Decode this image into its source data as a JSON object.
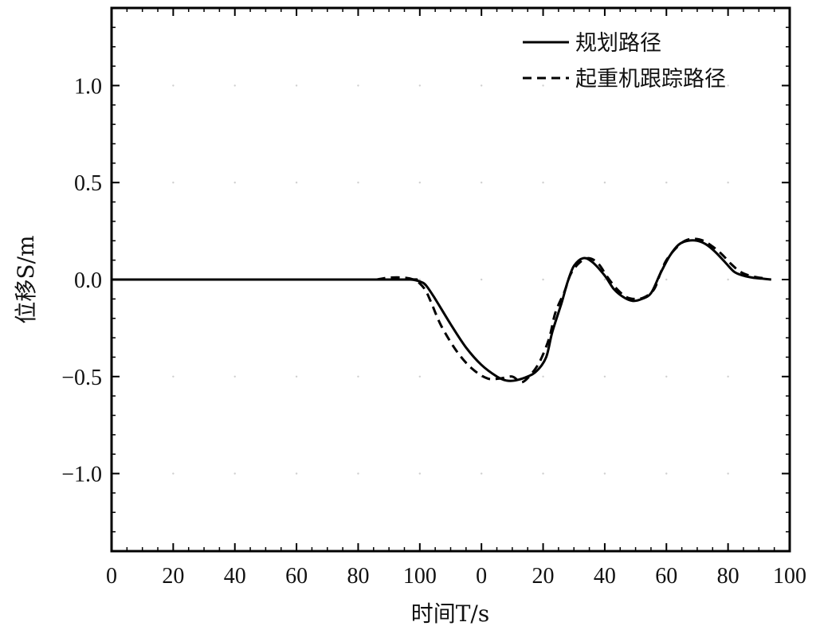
{
  "chart_data": {
    "type": "line",
    "title": "",
    "xlabel": "时间T/s",
    "ylabel": "位移S/m",
    "x_tick_labels": [
      "0",
      "20",
      "40",
      "60",
      "80",
      "100",
      "0",
      "20",
      "40",
      "60",
      "80",
      "100"
    ],
    "y_tick_labels": [
      "1.0",
      "0.5",
      "0.0",
      "−0.5",
      "−1.0"
    ],
    "y_tick_values": [
      1.0,
      0.5,
      0.0,
      -0.5,
      -1.0
    ],
    "ylim": [
      -1.4,
      1.4
    ],
    "xlim": [
      0,
      220
    ],
    "grid": "dotted-faint",
    "legend_position": "top-right",
    "series": [
      {
        "name": "规划路径",
        "style": "solid",
        "color": "#000000",
        "x": [
          0,
          90,
          97,
          100,
          102,
          105,
          110,
          115,
          120,
          125,
          128,
          131,
          135,
          138,
          141,
          143,
          146,
          148,
          150,
          153,
          156,
          160,
          163,
          166,
          169,
          172,
          175,
          178,
          181,
          184,
          187,
          190,
          193,
          196,
          199,
          202,
          205,
          208,
          211,
          214
        ],
        "y": [
          0,
          0,
          0,
          -0.01,
          -0.03,
          -0.1,
          -0.23,
          -0.35,
          -0.44,
          -0.5,
          -0.52,
          -0.52,
          -0.5,
          -0.47,
          -0.4,
          -0.27,
          -0.12,
          -0.01,
          0.07,
          0.11,
          0.09,
          0.02,
          -0.05,
          -0.09,
          -0.11,
          -0.1,
          -0.07,
          0.03,
          0.12,
          0.18,
          0.2,
          0.2,
          0.18,
          0.14,
          0.09,
          0.04,
          0.02,
          0.01,
          0.005,
          0
        ]
      },
      {
        "name": "起重机跟踪路径",
        "style": "dashed",
        "color": "#000000",
        "x": [
          86,
          90,
          95,
          98,
          100,
          102,
          104,
          107,
          112,
          117,
          122,
          126,
          130,
          133,
          136,
          139,
          142,
          144,
          147,
          149,
          152,
          155,
          158,
          161,
          164,
          167,
          170,
          173,
          176,
          178,
          180,
          183,
          186,
          189,
          192,
          195,
          198,
          201,
          204,
          207,
          210,
          213
        ],
        "y": [
          0,
          0.01,
          0.01,
          0,
          -0.02,
          -0.06,
          -0.13,
          -0.24,
          -0.37,
          -0.46,
          -0.51,
          -0.51,
          -0.5,
          -0.53,
          -0.49,
          -0.42,
          -0.3,
          -0.17,
          -0.06,
          0.03,
          0.09,
          0.11,
          0.08,
          0.01,
          -0.05,
          -0.09,
          -0.1,
          -0.09,
          -0.05,
          0.03,
          0.1,
          0.16,
          0.2,
          0.21,
          0.2,
          0.17,
          0.13,
          0.08,
          0.04,
          0.02,
          0.01,
          0.005
        ]
      }
    ]
  }
}
